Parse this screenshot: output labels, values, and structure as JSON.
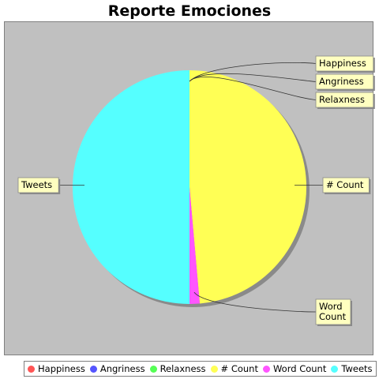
{
  "chart_data": {
    "type": "pie",
    "title": "Reporte Emociones",
    "categories": [
      "Happiness",
      "Angriness",
      "Relaxness",
      "# Count",
      "Word Count",
      "Tweets"
    ],
    "values": [
      0,
      0,
      0,
      48.6,
      1.4,
      50.0
    ],
    "colors": [
      "#ff5555",
      "#5555ff",
      "#55ff55",
      "#ffff55",
      "#ff55ff",
      "#55ffff"
    ],
    "legend_position": "bottom",
    "labels": [
      {
        "category": "Happiness",
        "text": "Happiness"
      },
      {
        "category": "Angriness",
        "text": "Angriness"
      },
      {
        "category": "Relaxness",
        "text": "Relaxness"
      },
      {
        "category": "# Count",
        "text": "# Count"
      },
      {
        "category": "Word Count",
        "text": "Word Count"
      },
      {
        "category": "Tweets",
        "text": "Tweets"
      }
    ]
  }
}
